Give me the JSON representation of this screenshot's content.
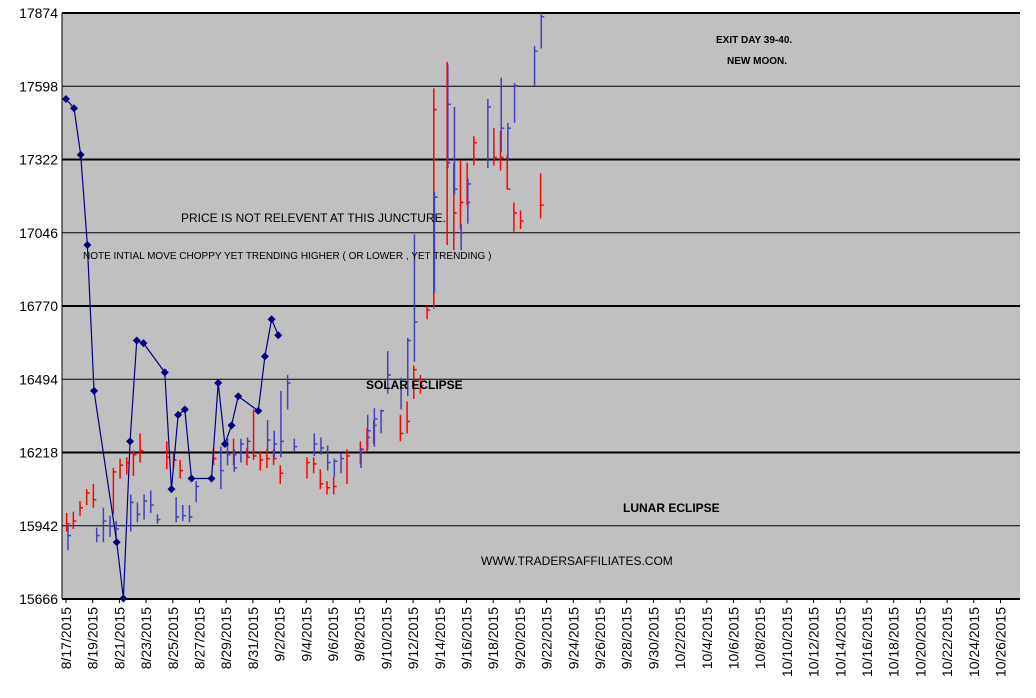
{
  "chart_data": {
    "type": "line",
    "y_ticks": [
      15666,
      15942,
      16218,
      16494,
      16770,
      17046,
      17322,
      17598,
      17874
    ],
    "ylim": [
      15666,
      17874
    ],
    "x_labels": [
      "8/17/2015",
      "8/19/2015",
      "8/21/2015",
      "8/23/2015",
      "8/25/2015",
      "8/27/2015",
      "8/29/2015",
      "8/31/2015",
      "9/2/2015",
      "9/4/2015",
      "9/6/2015",
      "9/8/2015",
      "9/10/2015",
      "9/12/2015",
      "9/14/2015",
      "9/16/2015",
      "9/18/2015",
      "9/20/2015",
      "9/22/2015",
      "9/24/2015",
      "9/26/2015",
      "9/28/2015",
      "9/30/2015",
      "10/2/2015",
      "10/4/2015",
      "10/6/2015",
      "10/8/2015",
      "10/10/2015",
      "10/12/2015",
      "10/14/2015",
      "10/16/2015",
      "10/18/2015",
      "10/20/2015",
      "10/22/2015",
      "10/24/2015",
      "10/26/2015"
    ],
    "grid": "horizontal",
    "background": "#c0c0c0",
    "overlay_series": {
      "color": "#00007f",
      "marker": "diamond",
      "points": [
        {
          "day": 0,
          "y": 17550
        },
        {
          "day": 0.6,
          "y": 17515
        },
        {
          "day": 1.1,
          "y": 17340
        },
        {
          "day": 1.6,
          "y": 17000
        },
        {
          "day": 2.1,
          "y": 16450
        },
        {
          "day": 3.8,
          "y": 15880
        },
        {
          "day": 4.3,
          "y": 15668
        },
        {
          "day": 4.8,
          "y": 16260
        },
        {
          "day": 5.3,
          "y": 16640
        },
        {
          "day": 5.8,
          "y": 16630
        },
        {
          "day": 7.4,
          "y": 16520
        },
        {
          "day": 7.9,
          "y": 16080
        },
        {
          "day": 8.4,
          "y": 16360
        },
        {
          "day": 8.9,
          "y": 16380
        },
        {
          "day": 9.4,
          "y": 16120
        },
        {
          "day": 10.9,
          "y": 16120
        },
        {
          "day": 11.4,
          "y": 16480
        },
        {
          "day": 11.9,
          "y": 16250
        },
        {
          "day": 12.4,
          "y": 16320
        },
        {
          "day": 12.9,
          "y": 16430
        },
        {
          "day": 14.4,
          "y": 16375
        },
        {
          "day": 14.9,
          "y": 16580
        },
        {
          "day": 15.4,
          "y": 16720
        },
        {
          "day": 15.9,
          "y": 16660
        }
      ]
    },
    "bars_red": [
      {
        "day": 0.05,
        "lo": 15920,
        "hi": 15990,
        "close": 15950
      },
      {
        "day": 0.55,
        "lo": 15930,
        "hi": 15995,
        "close": 15960
      },
      {
        "day": 1.05,
        "lo": 15980,
        "hi": 16035,
        "close": 16010
      },
      {
        "day": 1.55,
        "lo": 16020,
        "hi": 16080,
        "close": 16065
      },
      {
        "day": 2.05,
        "lo": 16010,
        "hi": 16100,
        "close": 16040
      },
      {
        "day": 3.55,
        "lo": 15985,
        "hi": 16160,
        "close": 16145
      },
      {
        "day": 4.05,
        "lo": 16120,
        "hi": 16195,
        "close": 16170
      },
      {
        "day": 4.55,
        "lo": 16135,
        "hi": 16200,
        "close": 16180
      },
      {
        "day": 5.05,
        "lo": 16130,
        "hi": 16225,
        "close": 16210
      },
      {
        "day": 5.55,
        "lo": 16180,
        "hi": 16290,
        "close": 16225
      },
      {
        "day": 7.55,
        "lo": 16155,
        "hi": 16260,
        "close": 16200
      },
      {
        "day": 8.05,
        "lo": 16160,
        "hi": 16215,
        "close": 16190
      },
      {
        "day": 8.55,
        "lo": 16120,
        "hi": 16190,
        "close": 16150
      },
      {
        "day": 11.05,
        "lo": 16170,
        "hi": 16235,
        "close": 16195
      },
      {
        "day": 12.55,
        "lo": 16170,
        "hi": 16270,
        "close": 16210
      },
      {
        "day": 13.55,
        "lo": 16170,
        "hi": 16235,
        "close": 16200
      },
      {
        "day": 14.05,
        "lo": 16190,
        "hi": 16380,
        "close": 16205
      },
      {
        "day": 14.55,
        "lo": 16150,
        "hi": 16220,
        "close": 16190
      },
      {
        "day": 15.05,
        "lo": 16160,
        "hi": 16230,
        "close": 16195
      },
      {
        "day": 15.55,
        "lo": 16170,
        "hi": 16230,
        "close": 16195
      },
      {
        "day": 16.05,
        "lo": 16100,
        "hi": 16170,
        "close": 16140
      },
      {
        "day": 18.05,
        "lo": 16120,
        "hi": 16200,
        "close": 16180
      },
      {
        "day": 18.55,
        "lo": 16140,
        "hi": 16200,
        "close": 16175
      },
      {
        "day": 19.05,
        "lo": 16080,
        "hi": 16155,
        "close": 16100
      },
      {
        "day": 19.55,
        "lo": 16060,
        "hi": 16110,
        "close": 16085
      },
      {
        "day": 20.05,
        "lo": 16060,
        "hi": 16125,
        "close": 16090
      },
      {
        "day": 21.05,
        "lo": 16100,
        "hi": 16230,
        "close": 16205
      },
      {
        "day": 22.05,
        "lo": 16175,
        "hi": 16260,
        "close": 16230
      },
      {
        "day": 22.55,
        "lo": 16220,
        "hi": 16310,
        "close": 16275
      },
      {
        "day": 23.05,
        "lo": 16250,
        "hi": 16340,
        "close": 16320
      },
      {
        "day": 25.05,
        "lo": 16260,
        "hi": 16360,
        "close": 16290
      },
      {
        "day": 25.55,
        "lo": 16290,
        "hi": 16410,
        "close": 16335
      },
      {
        "day": 26.05,
        "lo": 16420,
        "hi": 16545,
        "close": 16530
      },
      {
        "day": 26.55,
        "lo": 16440,
        "hi": 16510,
        "close": 16470
      },
      {
        "day": 27.05,
        "lo": 16720,
        "hi": 16770,
        "close": 16755
      },
      {
        "day": 27.55,
        "lo": 16760,
        "hi": 17590,
        "close": 17510
      },
      {
        "day": 28.55,
        "lo": 17000,
        "hi": 17690,
        "close": 17310
      },
      {
        "day": 29.05,
        "lo": 16980,
        "hi": 17310,
        "close": 17120
      },
      {
        "day": 29.55,
        "lo": 17060,
        "hi": 17320,
        "close": 17160
      },
      {
        "day": 30.05,
        "lo": 17150,
        "hi": 17310,
        "close": 17160
      },
      {
        "day": 30.55,
        "lo": 17300,
        "hi": 17410,
        "close": 17385
      },
      {
        "day": 32.05,
        "lo": 17300,
        "hi": 17440,
        "close": 17330
      },
      {
        "day": 32.55,
        "lo": 17280,
        "hi": 17430,
        "close": 17330
      },
      {
        "day": 33.05,
        "lo": 17210,
        "hi": 17340,
        "close": 17210
      },
      {
        "day": 33.55,
        "lo": 17050,
        "hi": 17160,
        "close": 17120
      },
      {
        "day": 34.05,
        "lo": 17060,
        "hi": 17130,
        "close": 17090
      },
      {
        "day": 35.55,
        "lo": 17100,
        "hi": 17270,
        "close": 17150
      }
    ],
    "bars_blue": [
      {
        "day": 0.15,
        "lo": 15850,
        "hi": 15945,
        "close": 15905
      },
      {
        "day": 2.3,
        "lo": 15880,
        "hi": 15935,
        "close": 15905
      },
      {
        "day": 2.8,
        "lo": 15880,
        "hi": 16010,
        "close": 15960
      },
      {
        "day": 3.3,
        "lo": 15900,
        "hi": 15980,
        "close": 15940
      },
      {
        "day": 3.75,
        "lo": 15895,
        "hi": 15960,
        "close": 15930
      },
      {
        "day": 4.85,
        "lo": 15920,
        "hi": 16060,
        "close": 16030
      },
      {
        "day": 5.35,
        "lo": 15955,
        "hi": 16030,
        "close": 15985
      },
      {
        "day": 5.85,
        "lo": 15965,
        "hi": 16060,
        "close": 16035
      },
      {
        "day": 6.35,
        "lo": 15990,
        "hi": 16075,
        "close": 16020
      },
      {
        "day": 6.85,
        "lo": 15950,
        "hi": 15985,
        "close": 15965
      },
      {
        "day": 8.25,
        "lo": 15955,
        "hi": 16050,
        "close": 15975
      },
      {
        "day": 8.75,
        "lo": 15960,
        "hi": 16020,
        "close": 15980
      },
      {
        "day": 9.25,
        "lo": 15955,
        "hi": 16020,
        "close": 15975
      },
      {
        "day": 9.75,
        "lo": 16030,
        "hi": 16110,
        "close": 16090
      },
      {
        "day": 11.6,
        "lo": 16080,
        "hi": 16240,
        "close": 16150
      },
      {
        "day": 12.1,
        "lo": 16170,
        "hi": 16270,
        "close": 16210
      },
      {
        "day": 12.6,
        "lo": 16145,
        "hi": 16230,
        "close": 16160
      },
      {
        "day": 13.1,
        "lo": 16180,
        "hi": 16270,
        "close": 16250
      },
      {
        "day": 13.6,
        "lo": 16200,
        "hi": 16275,
        "close": 16260
      },
      {
        "day": 15.1,
        "lo": 16225,
        "hi": 16340,
        "close": 16265
      },
      {
        "day": 15.6,
        "lo": 16200,
        "hi": 16300,
        "close": 16250
      },
      {
        "day": 16.1,
        "lo": 16200,
        "hi": 16450,
        "close": 16260
      },
      {
        "day": 16.6,
        "lo": 16380,
        "hi": 16510,
        "close": 16480
      },
      {
        "day": 17.1,
        "lo": 16220,
        "hi": 16270,
        "close": 16240
      },
      {
        "day": 18.6,
        "lo": 16205,
        "hi": 16290,
        "close": 16250
      },
      {
        "day": 19.1,
        "lo": 16210,
        "hi": 16275,
        "close": 16235
      },
      {
        "day": 19.6,
        "lo": 16150,
        "hi": 16245,
        "close": 16180
      },
      {
        "day": 20.1,
        "lo": 16125,
        "hi": 16195,
        "close": 16185
      },
      {
        "day": 20.6,
        "lo": 16140,
        "hi": 16215,
        "close": 16195
      },
      {
        "day": 22.1,
        "lo": 16160,
        "hi": 16235,
        "close": 16230
      },
      {
        "day": 22.6,
        "lo": 16230,
        "hi": 16360,
        "close": 16300
      },
      {
        "day": 23.1,
        "lo": 16240,
        "hi": 16385,
        "close": 16345
      },
      {
        "day": 23.6,
        "lo": 16290,
        "hi": 16380,
        "close": 16375
      },
      {
        "day": 24.1,
        "lo": 16440,
        "hi": 16600,
        "close": 16510
      },
      {
        "day": 25.1,
        "lo": 16380,
        "hi": 16500,
        "close": 16460
      },
      {
        "day": 25.6,
        "lo": 16430,
        "hi": 16650,
        "close": 16640
      },
      {
        "day": 26.1,
        "lo": 16560,
        "hi": 17040,
        "close": 16710
      },
      {
        "day": 27.6,
        "lo": 16820,
        "hi": 17200,
        "close": 17180
      },
      {
        "day": 28.6,
        "lo": 17290,
        "hi": 17680,
        "close": 17530
      },
      {
        "day": 29.1,
        "lo": 17190,
        "hi": 17520,
        "close": 17210
      },
      {
        "day": 29.6,
        "lo": 16980,
        "hi": 17080,
        "close": 17045
      },
      {
        "day": 30.1,
        "lo": 17080,
        "hi": 17250,
        "close": 17230
      },
      {
        "day": 31.6,
        "lo": 17290,
        "hi": 17550,
        "close": 17520
      },
      {
        "day": 32.6,
        "lo": 17350,
        "hi": 17630,
        "close": 17440
      },
      {
        "day": 33.1,
        "lo": 17320,
        "hi": 17460,
        "close": 17440
      },
      {
        "day": 33.6,
        "lo": 17460,
        "hi": 17610,
        "close": 17600
      },
      {
        "day": 35.1,
        "lo": 17600,
        "hi": 17750,
        "close": 17730
      },
      {
        "day": 35.6,
        "lo": 17740,
        "hi": 17874,
        "close": 17860
      }
    ],
    "annotations": [
      {
        "text": "EXIT DAY 39-40.",
        "style": "bold-small"
      },
      {
        "text": "NEW MOON.",
        "style": "bold-small"
      },
      {
        "text": "PRICE IS NOT RELEVENT AT THIS JUNCTURE.",
        "style": "normal"
      },
      {
        "text": "NOTE INTIAL MOVE CHOPPY YET TRENDING HIGHER ( OR LOWER , YET TRENDING )",
        "style": "small"
      },
      {
        "text": "SOLAR ECLIPSE",
        "style": "bold"
      },
      {
        "text": "LUNAR ECLIPSE",
        "style": "bold"
      },
      {
        "text": "WWW.TRADERSAFFILIATES.COM",
        "style": "normal"
      }
    ],
    "colors": {
      "up": "#ff0000",
      "down": "#4040c0",
      "overlay": "#00007f"
    }
  }
}
